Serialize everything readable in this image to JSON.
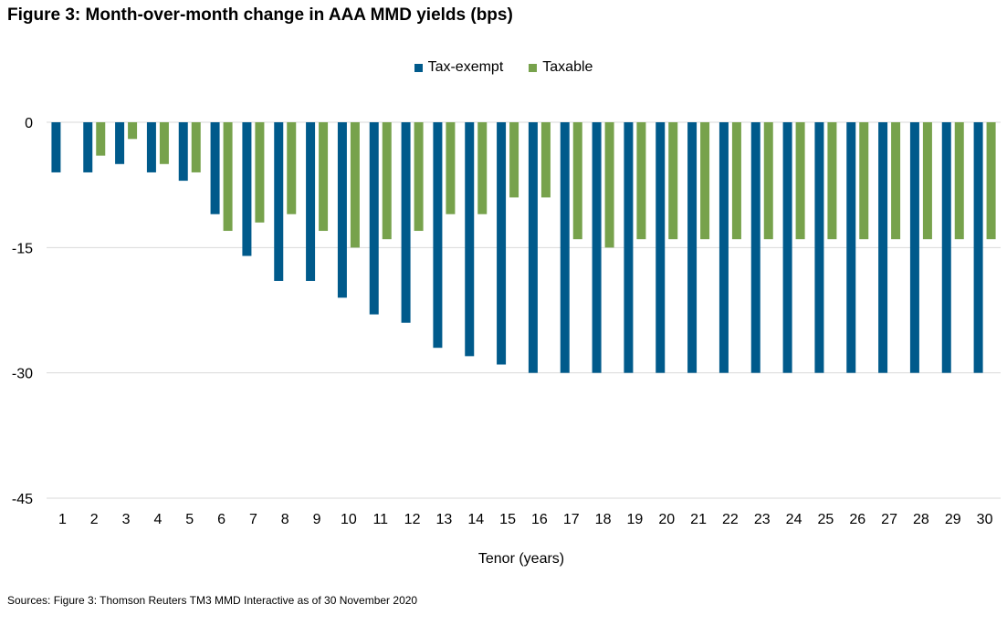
{
  "title": "Figure 3: Month-over-month change in AAA MMD yields (bps)",
  "source": "Sources: Figure 3: Thomson Reuters TM3 MMD Interactive as of 30 November 2020",
  "colors": {
    "tax_exempt": "#005A8B",
    "taxable": "#77A24C",
    "grid": "#d9d9d9"
  },
  "chart_data": {
    "type": "bar",
    "title": "Figure 3: Month-over-month change in AAA MMD yields (bps)",
    "xlabel": "Tenor (years)",
    "ylabel": "",
    "ylim": [
      -45,
      0
    ],
    "yticks": [
      0,
      -15,
      -30,
      -45
    ],
    "yticks_labels": [
      "0",
      "-15",
      "-30",
      "-45"
    ],
    "grid": true,
    "legend": "top-center",
    "categories": [
      "1",
      "2",
      "3",
      "4",
      "5",
      "6",
      "7",
      "8",
      "9",
      "10",
      "11",
      "12",
      "13",
      "14",
      "15",
      "16",
      "17",
      "18",
      "19",
      "20",
      "21",
      "22",
      "23",
      "24",
      "25",
      "26",
      "27",
      "28",
      "29",
      "30"
    ],
    "series": [
      {
        "name": "Tax-exempt",
        "values": [
          -6,
          -6,
          -5,
          -6,
          -7,
          -11,
          -16,
          -19,
          -19,
          -21,
          -23,
          -24,
          -27,
          -28,
          -29,
          -30,
          -30,
          -30,
          -30,
          -30,
          -30,
          -30,
          -30,
          -30,
          -30,
          -30,
          -30,
          -30,
          -30,
          -30
        ]
      },
      {
        "name": "Taxable",
        "values": [
          0,
          -4,
          -2,
          -5,
          -6,
          -13,
          -12,
          -11,
          -13,
          -15,
          -14,
          -13,
          -11,
          -11,
          -9,
          -9,
          -14,
          -15,
          -14,
          -14,
          -14,
          -14,
          -14,
          -14,
          -14,
          -14,
          -14,
          -14,
          -14,
          -14
        ]
      }
    ]
  }
}
